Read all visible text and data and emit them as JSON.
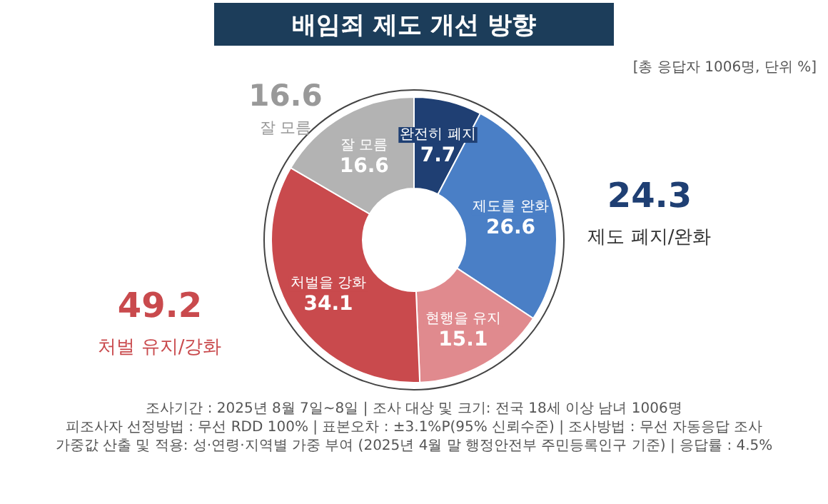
{
  "chart_data": {
    "type": "donut",
    "title": "배임죄 제도 개선 방향",
    "categories": [
      "완전히 폐지",
      "제도를 완화",
      "현행을 유지",
      "처벌을 강화",
      "잘 모름"
    ],
    "values": [
      7.7,
      26.6,
      15.1,
      34.1,
      16.6
    ],
    "colors": [
      "#1f3f73",
      "#4a7fc6",
      "#e08a8e",
      "#c94a4d",
      "#b3b3b3"
    ],
    "data_labels": true,
    "annotations": [
      "24.3",
      "제도 폐지/완화",
      "49.2",
      "처벌 유지/강화",
      "16.6",
      "잘 모름",
      "[총 응답자 1006명, 단위 %]",
      "조사기간 : 2025년 8월 7일~8일 | 조사 대상 및 크기: 전국 18세 이상 남녀 1006명",
      "피조사자 선정방법 : 무선 RDD 100% | 표본오차 : ±3.1%P(95% 신뢰수준) | 조사방법 : 무선 자동응답 조사",
      "가중값 산출 및 적용: 성·연령·지역별 가중 부여 (2025년 4월 말 행정안전부 주민등록인구 기준) | 응답률 : 4.5%"
    ]
  }
}
